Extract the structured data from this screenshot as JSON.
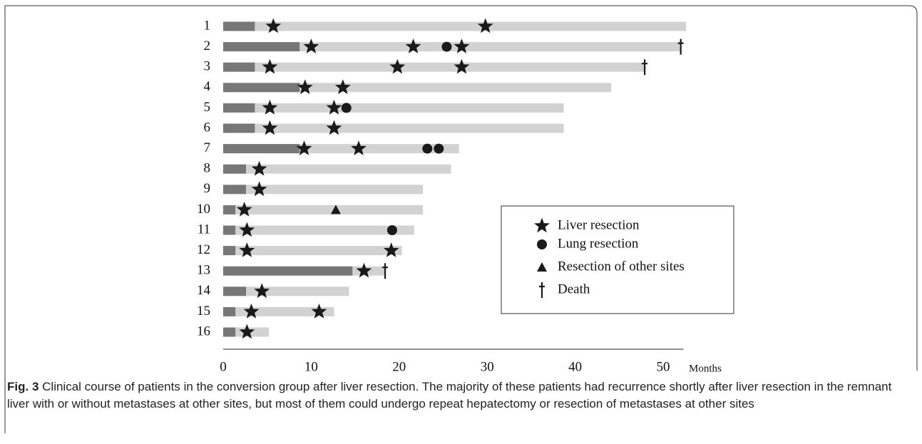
{
  "chart_data": {
    "type": "swimmer",
    "patients": [
      "1",
      "2",
      "3",
      "4",
      "5",
      "6",
      "7",
      "8",
      "9",
      "10",
      "11",
      "12",
      "13",
      "14",
      "15",
      "16"
    ],
    "segments": [
      [
        3.6,
        49.0
      ],
      [
        8.7,
        43.2
      ],
      [
        3.6,
        44.4
      ],
      [
        8.7,
        35.4
      ],
      [
        3.6,
        35.1
      ],
      [
        3.6,
        35.1
      ],
      [
        8.7,
        18.1
      ],
      [
        2.6,
        23.3
      ],
      [
        2.6,
        20.1
      ],
      [
        1.4,
        21.3
      ],
      [
        1.4,
        20.3
      ],
      [
        1.4,
        18.9
      ],
      [
        14.7,
        3.7
      ],
      [
        2.6,
        11.7
      ],
      [
        1.4,
        11.2
      ],
      [
        1.4,
        3.8
      ]
    ],
    "segment_colors": [
      "#777777",
      "#d2d2d2"
    ],
    "series": [
      {
        "name": "Liver resection",
        "marker": "star",
        "color": "#1a1a1a",
        "points": [
          {
            "patient": "1",
            "x": 5.7
          },
          {
            "patient": "1",
            "x": 29.8
          },
          {
            "patient": "2",
            "x": 10.0
          },
          {
            "patient": "2",
            "x": 21.6
          },
          {
            "patient": "2",
            "x": 27.1
          },
          {
            "patient": "3",
            "x": 5.3
          },
          {
            "patient": "3",
            "x": 19.8
          },
          {
            "patient": "3",
            "x": 27.1
          },
          {
            "patient": "4",
            "x": 9.3
          },
          {
            "patient": "4",
            "x": 13.6
          },
          {
            "patient": "5",
            "x": 5.3
          },
          {
            "patient": "5",
            "x": 12.6
          },
          {
            "patient": "6",
            "x": 5.3
          },
          {
            "patient": "6",
            "x": 12.6
          },
          {
            "patient": "7",
            "x": 9.2
          },
          {
            "patient": "7",
            "x": 15.4
          },
          {
            "patient": "8",
            "x": 4.1
          },
          {
            "patient": "9",
            "x": 4.1
          },
          {
            "patient": "10",
            "x": 2.4
          },
          {
            "patient": "11",
            "x": 2.7
          },
          {
            "patient": "12",
            "x": 2.7
          },
          {
            "patient": "12",
            "x": 19.1
          },
          {
            "patient": "13",
            "x": 16.0
          },
          {
            "patient": "14",
            "x": 4.4
          },
          {
            "patient": "15",
            "x": 3.2
          },
          {
            "patient": "15",
            "x": 10.9
          },
          {
            "patient": "16",
            "x": 2.7
          }
        ]
      },
      {
        "name": "Lung resection",
        "marker": "circle",
        "color": "#1a1a1a",
        "points": [
          {
            "patient": "2",
            "x": 25.4
          },
          {
            "patient": "5",
            "x": 14.0
          },
          {
            "patient": "7",
            "x": 23.2
          },
          {
            "patient": "7",
            "x": 24.5
          },
          {
            "patient": "11",
            "x": 19.2
          }
        ]
      },
      {
        "name": "Resection of other sites",
        "marker": "triangle",
        "color": "#1a1a1a",
        "points": [
          {
            "patient": "10",
            "x": 12.8
          }
        ]
      },
      {
        "name": "Death",
        "marker": "dagger",
        "color": "#1a1a1a",
        "points": [
          {
            "patient": "2",
            "x": 52.0
          },
          {
            "patient": "3",
            "x": 47.9
          },
          {
            "patient": "13",
            "x": 18.4
          }
        ]
      }
    ],
    "xlabel": "Months",
    "xlim": [
      0,
      52.3
    ],
    "xticks": [
      0,
      10,
      20,
      30,
      40,
      50
    ]
  },
  "caption": {
    "label": "Fig. 3",
    "text": "Clinical course of patients in the conversion group after liver resection. The majority of these patients had recurrence shortly after liver resection in the remnant liver with or without metastases at other sites, but most of them could undergo repeat hepatectomy or resection of metastases at other sites"
  }
}
